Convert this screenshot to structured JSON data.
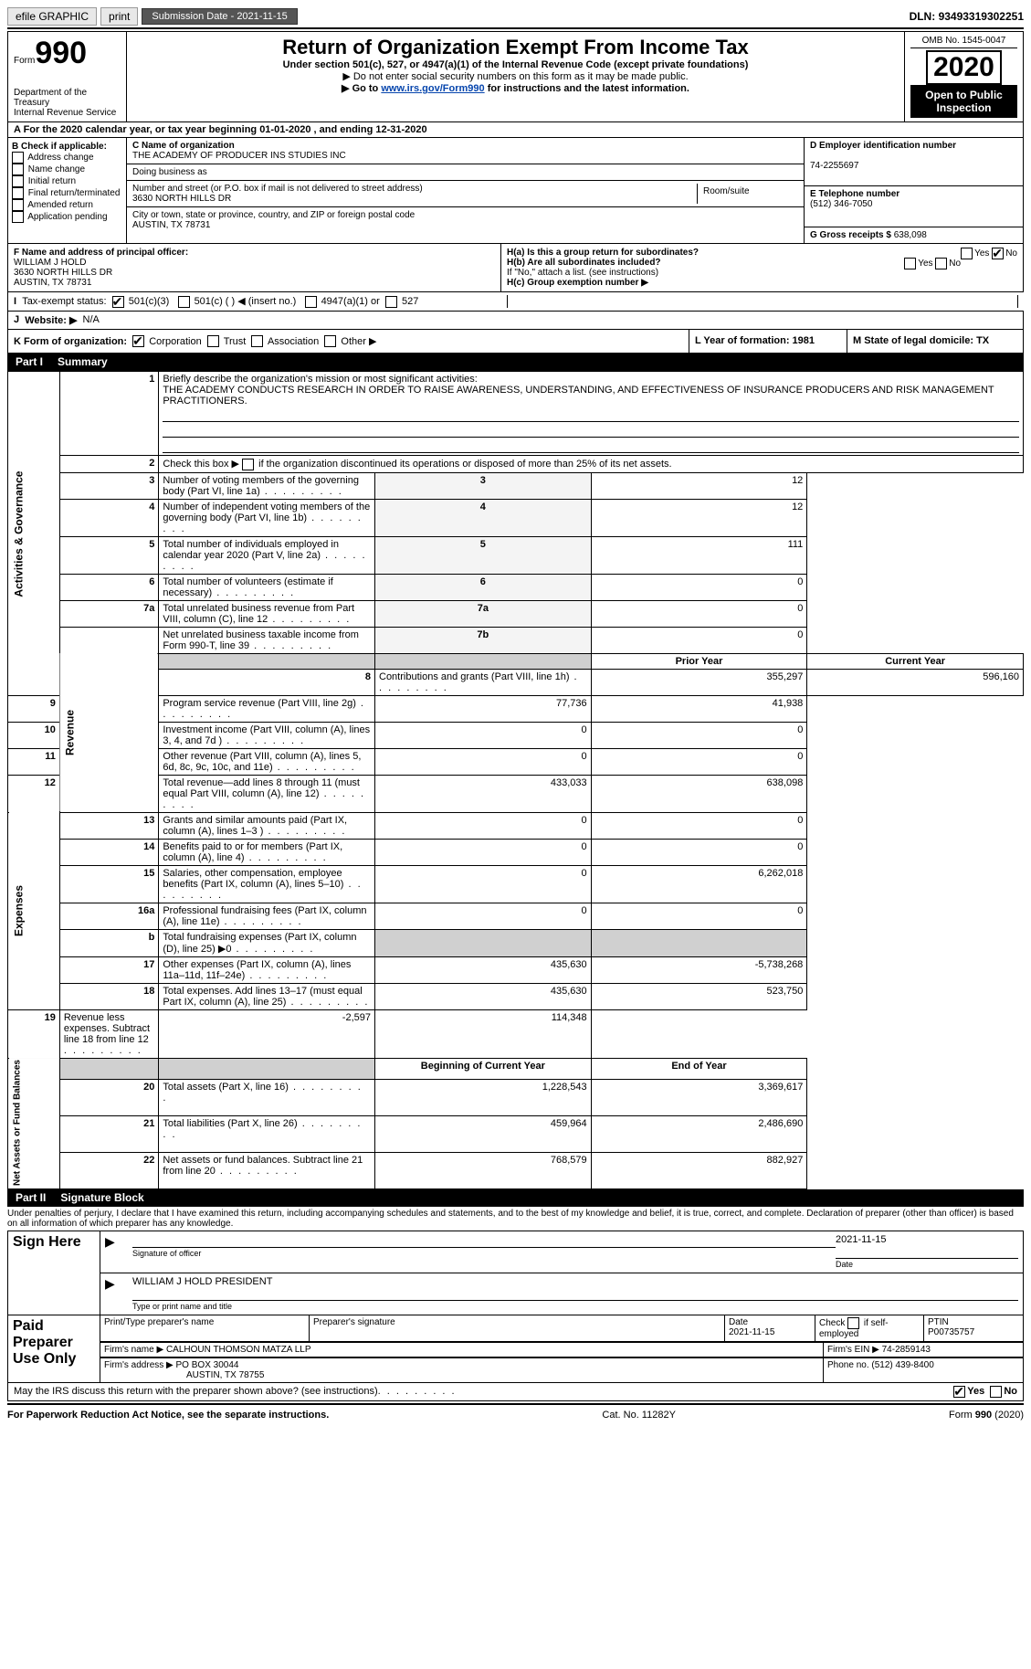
{
  "topbar": {
    "efile": "efile GRAPHIC",
    "print": "print",
    "sub_label": "Submission Date - ",
    "sub_date": "2021-11-15",
    "dln_label": "DLN: ",
    "dln": "93493319302251"
  },
  "header": {
    "form_word": "Form",
    "form_num": "990",
    "dept": "Department of the Treasury",
    "irs": "Internal Revenue Service",
    "title": "Return of Organization Exempt From Income Tax",
    "subtitle": "Under section 501(c), 527, or 4947(a)(1) of the Internal Revenue Code (except private foundations)",
    "instr1": "▶ Do not enter social security numbers on this form as it may be made public.",
    "instr2_pre": "▶ Go to ",
    "instr2_link": "www.irs.gov/Form990",
    "instr2_post": " for instructions and the latest information.",
    "omb": "OMB No. 1545-0047",
    "year": "2020",
    "open": "Open to Public Inspection"
  },
  "row_a": {
    "text": "A For the 2020 calendar year, or tax year beginning 01-01-2020   , and ending 12-31-2020"
  },
  "box_b": {
    "title": "B Check if applicable:",
    "items": [
      "Address change",
      "Name change",
      "Initial return",
      "Final return/terminated",
      "Amended return",
      "Application pending"
    ]
  },
  "box_c": {
    "name_lbl": "C Name of organization",
    "name": "THE ACADEMY OF PRODUCER INS STUDIES INC",
    "dba_lbl": "Doing business as",
    "addr_lbl": "Number and street (or P.O. box if mail is not delivered to street address)",
    "room_lbl": "Room/suite",
    "addr": "3630 NORTH HILLS DR",
    "city_lbl": "City or town, state or province, country, and ZIP or foreign postal code",
    "city": "AUSTIN, TX  78731"
  },
  "box_d": {
    "lbl": "D Employer identification number",
    "val": "74-2255697"
  },
  "box_e": {
    "lbl": "E Telephone number",
    "val": "(512) 346-7050"
  },
  "box_g": {
    "lbl": "G Gross receipts $ ",
    "val": "638,098"
  },
  "box_f": {
    "lbl": "F Name and address of principal officer:",
    "name": "WILLIAM J HOLD",
    "addr1": "3630 NORTH HILLS DR",
    "addr2": "AUSTIN, TX  78731"
  },
  "box_h": {
    "ha": "H(a)  Is this a group return for subordinates?",
    "hb": "H(b)  Are all subordinates included?",
    "hb_note": "If \"No,\" attach a list. (see instructions)",
    "hc": "H(c)  Group exemption number ▶",
    "yes": "Yes",
    "no": "No"
  },
  "row_i": {
    "lbl": "Tax-exempt status:",
    "o1": "501(c)(3)",
    "o2": "501(c) (  ) ◀ (insert no.)",
    "o3": "4947(a)(1) or",
    "o4": "527"
  },
  "row_j": {
    "lbl": "Website: ▶",
    "val": "N/A"
  },
  "row_k": {
    "lbl": "K Form of organization:",
    "o1": "Corporation",
    "o2": "Trust",
    "o3": "Association",
    "o4": "Other ▶"
  },
  "row_lm": {
    "l": "L Year of formation: 1981",
    "m": "M State of legal domicile: TX"
  },
  "part1": {
    "hdr": "Part I",
    "title": "Summary",
    "line1_lbl": "Briefly describe the organization's mission or most significant activities:",
    "line1_txt": "THE ACADEMY CONDUCTS RESEARCH IN ORDER TO RAISE AWARENESS, UNDERSTANDING, AND EFFECTIVENESS OF INSURANCE PRODUCERS AND RISK MANAGEMENT PRACTITIONERS.",
    "line2": "Check this box ▶      if the organization discontinued its operations or disposed of more than 25% of its net assets.",
    "prior": "Prior Year",
    "current": "Current Year",
    "begin": "Beginning of Current Year",
    "end": "End of Year",
    "rows_gov": [
      {
        "n": "3",
        "t": "Number of voting members of the governing body (Part VI, line 1a)",
        "k": "3",
        "v": "12"
      },
      {
        "n": "4",
        "t": "Number of independent voting members of the governing body (Part VI, line 1b)",
        "k": "4",
        "v": "12"
      },
      {
        "n": "5",
        "t": "Total number of individuals employed in calendar year 2020 (Part V, line 2a)",
        "k": "5",
        "v": "111"
      },
      {
        "n": "6",
        "t": "Total number of volunteers (estimate if necessary)",
        "k": "6",
        "v": "0"
      },
      {
        "n": "7a",
        "t": "Total unrelated business revenue from Part VIII, column (C), line 12",
        "k": "7a",
        "v": "0"
      },
      {
        "n": "",
        "t": "Net unrelated business taxable income from Form 990-T, line 39",
        "k": "7b",
        "v": "0"
      }
    ],
    "rows_rev": [
      {
        "n": "8",
        "t": "Contributions and grants (Part VIII, line 1h)",
        "p": "355,297",
        "c": "596,160"
      },
      {
        "n": "9",
        "t": "Program service revenue (Part VIII, line 2g)",
        "p": "77,736",
        "c": "41,938"
      },
      {
        "n": "10",
        "t": "Investment income (Part VIII, column (A), lines 3, 4, and 7d )",
        "p": "0",
        "c": "0"
      },
      {
        "n": "11",
        "t": "Other revenue (Part VIII, column (A), lines 5, 6d, 8c, 9c, 10c, and 11e)",
        "p": "0",
        "c": "0"
      },
      {
        "n": "12",
        "t": "Total revenue—add lines 8 through 11 (must equal Part VIII, column (A), line 12)",
        "p": "433,033",
        "c": "638,098"
      }
    ],
    "rows_exp": [
      {
        "n": "13",
        "t": "Grants and similar amounts paid (Part IX, column (A), lines 1–3 )",
        "p": "0",
        "c": "0"
      },
      {
        "n": "14",
        "t": "Benefits paid to or for members (Part IX, column (A), line 4)",
        "p": "0",
        "c": "0"
      },
      {
        "n": "15",
        "t": "Salaries, other compensation, employee benefits (Part IX, column (A), lines 5–10)",
        "p": "0",
        "c": "6,262,018"
      },
      {
        "n": "16a",
        "t": "Professional fundraising fees (Part IX, column (A), line 11e)",
        "p": "0",
        "c": "0"
      },
      {
        "n": "b",
        "t": "Total fundraising expenses (Part IX, column (D), line 25) ▶0",
        "p": "",
        "c": "",
        "shade": true
      },
      {
        "n": "17",
        "t": "Other expenses (Part IX, column (A), lines 11a–11d, 11f–24e)",
        "p": "435,630",
        "c": "-5,738,268"
      },
      {
        "n": "18",
        "t": "Total expenses. Add lines 13–17 (must equal Part IX, column (A), line 25)",
        "p": "435,630",
        "c": "523,750"
      },
      {
        "n": "19",
        "t": "Revenue less expenses. Subtract line 18 from line 12",
        "p": "-2,597",
        "c": "114,348"
      }
    ],
    "rows_net": [
      {
        "n": "20",
        "t": "Total assets (Part X, line 16)",
        "p": "1,228,543",
        "c": "3,369,617"
      },
      {
        "n": "21",
        "t": "Total liabilities (Part X, line 26)",
        "p": "459,964",
        "c": "2,486,690"
      },
      {
        "n": "22",
        "t": "Net assets or fund balances. Subtract line 21 from line 20",
        "p": "768,579",
        "c": "882,927"
      }
    ],
    "side_gov": "Activities & Governance",
    "side_rev": "Revenue",
    "side_exp": "Expenses",
    "side_net": "Net Assets or Fund Balances"
  },
  "part2": {
    "hdr": "Part II",
    "title": "Signature Block",
    "decl": "Under penalties of perjury, I declare that I have examined this return, including accompanying schedules and statements, and to the best of my knowledge and belief, it is true, correct, and complete. Declaration of preparer (other than officer) is based on all information of which preparer has any knowledge.",
    "sign_here": "Sign Here",
    "sig_officer": "Signature of officer",
    "date": "Date",
    "date_val": "2021-11-15",
    "name_title": "WILLIAM J HOLD PRESIDENT",
    "type_name": "Type or print name and title",
    "paid": "Paid Preparer Use Only",
    "prep_name_lbl": "Print/Type preparer's name",
    "prep_sig_lbl": "Preparer's signature",
    "prep_date_lbl": "Date",
    "prep_date": "2021-11-15",
    "check_self": "Check        if self-employed",
    "ptin_lbl": "PTIN",
    "ptin": "P00735757",
    "firm_name_lbl": "Firm's name    ▶ ",
    "firm_name": "CALHOUN THOMSON MATZA LLP",
    "firm_ein_lbl": "Firm's EIN ▶ ",
    "firm_ein": "74-2859143",
    "firm_addr_lbl": "Firm's address ▶ ",
    "firm_addr1": "PO BOX 30044",
    "firm_addr2": "AUSTIN, TX  78755",
    "phone_lbl": "Phone no. ",
    "phone": "(512) 439-8400",
    "discuss": "May the IRS discuss this return with the preparer shown above? (see instructions)"
  },
  "footer": {
    "pra": "For Paperwork Reduction Act Notice, see the separate instructions.",
    "cat": "Cat. No. 11282Y",
    "form": "Form 990 (2020)"
  }
}
